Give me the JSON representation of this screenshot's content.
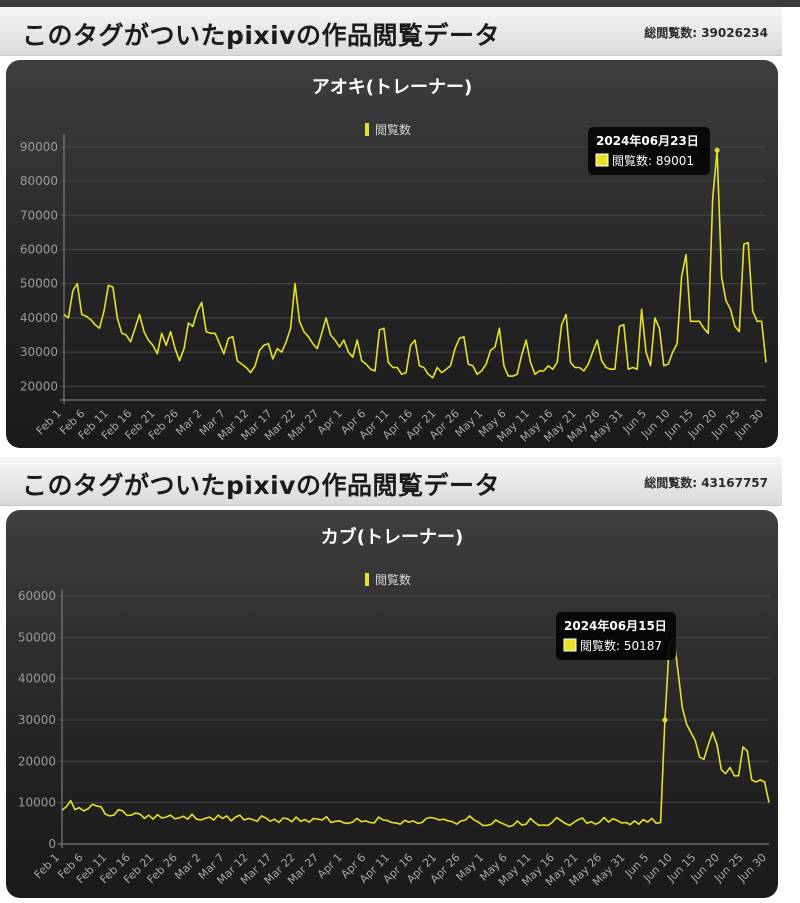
{
  "page": {
    "sections": [
      {
        "header_title": "このタグがついたpixivの作品閲覧データ",
        "total_label": "総閲覧数: 39026234"
      },
      {
        "header_title": "このタグがついたpixivの作品閲覧データ",
        "total_label": "総閲覧数: 43167757"
      }
    ]
  },
  "colors": {
    "series": "#e8e02a",
    "background": "#2a2a2a",
    "text": "#ffffff",
    "grid": "#4a4a4a"
  },
  "chart_data": [
    {
      "type": "line",
      "title": "アオキ(トレーナー)",
      "legend": "閲覧数",
      "legend_position": "top",
      "grid": true,
      "y_ticks": [
        20000,
        30000,
        40000,
        50000,
        60000,
        70000,
        80000,
        90000
      ],
      "ylim": [
        16000,
        92000
      ],
      "x_tick_labels": [
        "Feb 1",
        "Feb 6",
        "Feb 11",
        "Feb 16",
        "Feb 21",
        "Feb 26",
        "Mar 2",
        "Mar 7",
        "Mar 12",
        "Mar 17",
        "Mar 22",
        "Mar 27",
        "Apr 1",
        "Apr 6",
        "Apr 11",
        "Apr 16",
        "Apr 21",
        "Apr 26",
        "May 1",
        "May 6",
        "May 11",
        "May 16",
        "May 21",
        "May 26",
        "May 31",
        "Jun 5",
        "Jun 10",
        "Jun 15",
        "Jun 20",
        "Jun 25",
        "Jun 30"
      ],
      "tooltip": {
        "title": "2024年06月23日",
        "label": "閲覧数: 89001"
      },
      "series": [
        {
          "name": "閲覧数",
          "values": [
            41000,
            40000,
            48000,
            50000,
            41000,
            40500,
            39500,
            38000,
            37000,
            42000,
            49500,
            49000,
            40000,
            35500,
            35000,
            33000,
            37000,
            41000,
            36000,
            33500,
            32000,
            29500,
            35500,
            32000,
            36000,
            31000,
            27500,
            31000,
            38500,
            37500,
            42000,
            44500,
            36000,
            35500,
            35500,
            32500,
            29500,
            34000,
            34500,
            27500,
            26500,
            25500,
            24000,
            26000,
            30500,
            32000,
            32500,
            28000,
            31000,
            30000,
            33000,
            37000,
            50000,
            39000,
            36000,
            34500,
            32500,
            31000,
            35500,
            40000,
            35000,
            33500,
            31500,
            33500,
            30000,
            28500,
            33500,
            27500,
            26500,
            25000,
            24500,
            36500,
            37000,
            27000,
            25500,
            25500,
            23500,
            24000,
            32000,
            33500,
            26000,
            25500,
            23500,
            22500,
            25500,
            24000,
            25000,
            26000,
            31000,
            34000,
            34500,
            26500,
            26000,
            23500,
            24500,
            26500,
            30500,
            31500,
            37000,
            26000,
            23000,
            23000,
            23500,
            29000,
            33500,
            27000,
            23500,
            24500,
            24500,
            26000,
            25000,
            27000,
            38000,
            41000,
            27000,
            25500,
            25500,
            24500,
            26500,
            30000,
            33500,
            27500,
            25500,
            25000,
            25000,
            37500,
            38000,
            25000,
            25500,
            25000,
            42500,
            30000,
            26000,
            40000,
            37000,
            26000,
            26500,
            30000,
            32500,
            52000,
            58500,
            39000,
            39000,
            39000,
            37000,
            35500,
            75000,
            89001,
            52000,
            45000,
            42500,
            37500,
            36000,
            61500,
            62000,
            42000,
            39000,
            39000,
            27000
          ]
        }
      ]
    },
    {
      "type": "line",
      "title": "カブ(トレーナー)",
      "legend": "閲覧数",
      "legend_position": "top",
      "grid": true,
      "y_ticks": [
        0,
        10000,
        20000,
        30000,
        40000,
        50000,
        60000
      ],
      "ylim": [
        0,
        60000
      ],
      "x_tick_labels": [
        "Feb 1",
        "Feb 6",
        "Feb 11",
        "Feb 16",
        "Feb 21",
        "Feb 26",
        "Mar 2",
        "Mar 7",
        "Mar 12",
        "Mar 17",
        "Mar 22",
        "Mar 27",
        "Apr 1",
        "Apr 6",
        "Apr 11",
        "Apr 16",
        "Apr 21",
        "Apr 26",
        "May 1",
        "May 6",
        "May 11",
        "May 16",
        "May 21",
        "May 26",
        "May 31",
        "Jun 5",
        "Jun 10",
        "Jun 15",
        "Jun 20",
        "Jun 25",
        "Jun 30"
      ],
      "tooltip": {
        "title": "2024年06月15日",
        "label": "閲覧数: 50187"
      },
      "series": [
        {
          "name": "閲覧数",
          "values": [
            8200,
            9000,
            10500,
            8300,
            8800,
            8000,
            8500,
            9600,
            9200,
            9000,
            7200,
            6800,
            7000,
            8300,
            8000,
            6900,
            7000,
            7500,
            7200,
            6200,
            7000,
            6000,
            7100,
            6300,
            6500,
            7000,
            6100,
            6300,
            6700,
            6000,
            7200,
            6000,
            5800,
            6200,
            6500,
            5800,
            7000,
            6200,
            6800,
            5600,
            6500,
            7000,
            5800,
            6200,
            5900,
            5500,
            6800,
            6300,
            5500,
            6000,
            5200,
            6300,
            6100,
            5400,
            6500,
            5500,
            5900,
            5300,
            6200,
            6000,
            5800,
            6600,
            5200,
            5500,
            5600,
            5100,
            5000,
            5300,
            6200,
            5400,
            5600,
            5200,
            5100,
            6500,
            5800,
            5700,
            5200,
            5100,
            4800,
            5700,
            5300,
            5600,
            5000,
            5200,
            6200,
            6400,
            6200,
            5800,
            6000,
            5600,
            5400,
            4800,
            5600,
            5800,
            6800,
            5800,
            5300,
            4500,
            4500,
            4800,
            5800,
            5200,
            4800,
            4200,
            4500,
            5600,
            4600,
            4800,
            6200,
            5200,
            4500,
            4600,
            4500,
            5200,
            6400,
            5700,
            5000,
            4500,
            5200,
            5900,
            6300,
            5000,
            5400,
            4800,
            5300,
            6400,
            5300,
            6100,
            5700,
            5100,
            5200,
            4700,
            5600,
            4800,
            5900,
            5300,
            6200,
            5000,
            5200,
            30000,
            48000,
            50187,
            42000,
            33000,
            29000,
            27000,
            25000,
            21000,
            20500,
            24000,
            27000,
            24000,
            18000,
            17000,
            18500,
            16500,
            16500,
            23500,
            22500,
            15500,
            15000,
            15500,
            15000,
            10000
          ]
        }
      ]
    }
  ]
}
